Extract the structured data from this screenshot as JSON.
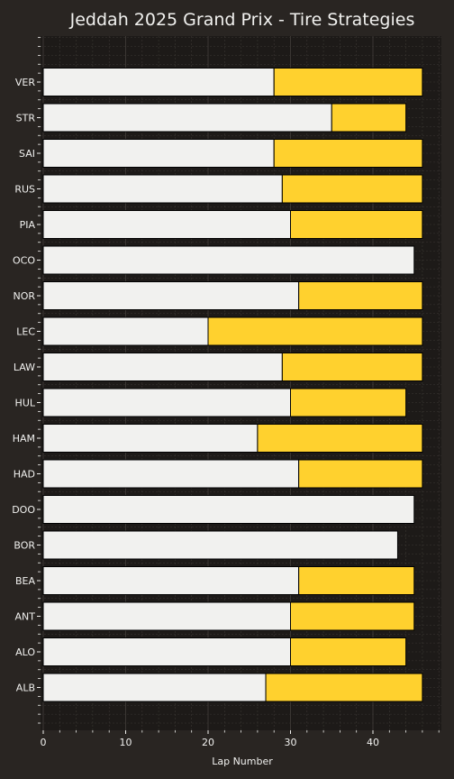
{
  "chart_data": {
    "type": "bar",
    "orientation": "horizontal",
    "stacked": true,
    "title": "Jeddah 2025 Grand Prix - Tire Strategies",
    "xlabel": "Lap Number",
    "ylabel": "",
    "xlim": [
      0,
      48
    ],
    "xticks": [
      0,
      10,
      20,
      30,
      40
    ],
    "grid": true,
    "categories": [
      "VER",
      "STR",
      "SAI",
      "RUS",
      "PIA",
      "OCO",
      "NOR",
      "LEC",
      "LAW",
      "HUL",
      "HAM",
      "HAD",
      "DOO",
      "BOR",
      "BEA",
      "ANT",
      "ALO",
      "ALB"
    ],
    "series": [
      {
        "color": "#f1f1ef",
        "values": [
          28,
          35,
          28,
          29,
          30,
          45,
          31,
          20,
          29,
          30,
          26,
          31,
          45,
          43,
          31,
          30,
          30,
          27
        ]
      },
      {
        "color": "#ffd12e",
        "values": [
          18,
          9,
          18,
          17,
          16,
          0,
          15,
          26,
          17,
          14,
          20,
          15,
          0,
          0,
          14,
          15,
          14,
          19
        ]
      }
    ],
    "colors": {
      "background": "#292522",
      "plot_background": "#1d1a18",
      "grid": "#3b3733",
      "text": "#f1f1ef",
      "bar_edge": "#000000"
    }
  }
}
